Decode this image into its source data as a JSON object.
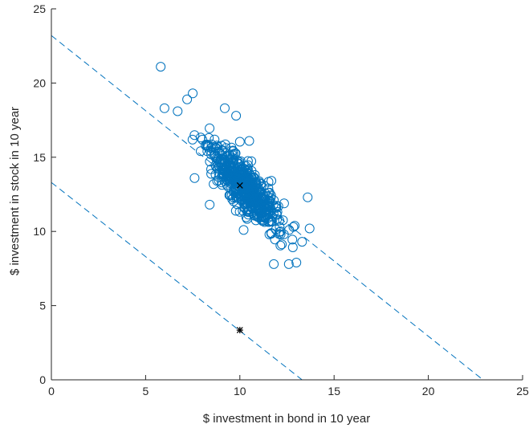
{
  "chart_data": {
    "type": "scatter",
    "xlabel": "$ investment in bond in 10 year",
    "ylabel": "$ investment in stock in 10 year",
    "xlim": [
      0,
      25
    ],
    "ylim": [
      0,
      25
    ],
    "xticks": [
      "0",
      "5",
      "10",
      "15",
      "20",
      "25"
    ],
    "yticks": [
      "0",
      "5",
      "10",
      "15",
      "20",
      "25"
    ],
    "grid": false,
    "legend": "none",
    "colors": {
      "scatter": "#0072bd",
      "marker": "#000000",
      "axis": "#262626"
    },
    "scatter_cloud": {
      "count": 600,
      "center": [
        10.3,
        13.0
      ],
      "direction": [
        0.6,
        -1.0
      ],
      "major_sd": 1.55,
      "minor_sd": 0.45,
      "seed": 11
    },
    "outliers": [
      {
        "x": 5.8,
        "y": 21.1
      },
      {
        "x": 6.0,
        "y": 18.3
      },
      {
        "x": 6.7,
        "y": 18.1
      },
      {
        "x": 7.2,
        "y": 18.9
      },
      {
        "x": 7.5,
        "y": 19.3
      },
      {
        "x": 9.2,
        "y": 18.3
      },
      {
        "x": 9.8,
        "y": 17.8
      },
      {
        "x": 10.5,
        "y": 16.1
      },
      {
        "x": 13.6,
        "y": 12.3
      },
      {
        "x": 13.7,
        "y": 10.2
      },
      {
        "x": 13.3,
        "y": 9.3
      },
      {
        "x": 13.0,
        "y": 7.9
      },
      {
        "x": 12.6,
        "y": 7.8
      },
      {
        "x": 11.8,
        "y": 7.8
      },
      {
        "x": 7.6,
        "y": 13.6
      },
      {
        "x": 8.4,
        "y": 11.8
      },
      {
        "x": 10.2,
        "y": 10.1
      }
    ],
    "dashed_lines": [
      {
        "x0": 0,
        "y0": 23.2,
        "x1": 22.9,
        "y1": 0
      },
      {
        "x0": 0,
        "y0": 13.3,
        "x1": 13.3,
        "y1": 0
      }
    ],
    "markers": [
      {
        "symbol": "x",
        "x": 10.0,
        "y": 13.1
      },
      {
        "symbol": "*",
        "x": 10.0,
        "y": 3.35
      }
    ]
  }
}
